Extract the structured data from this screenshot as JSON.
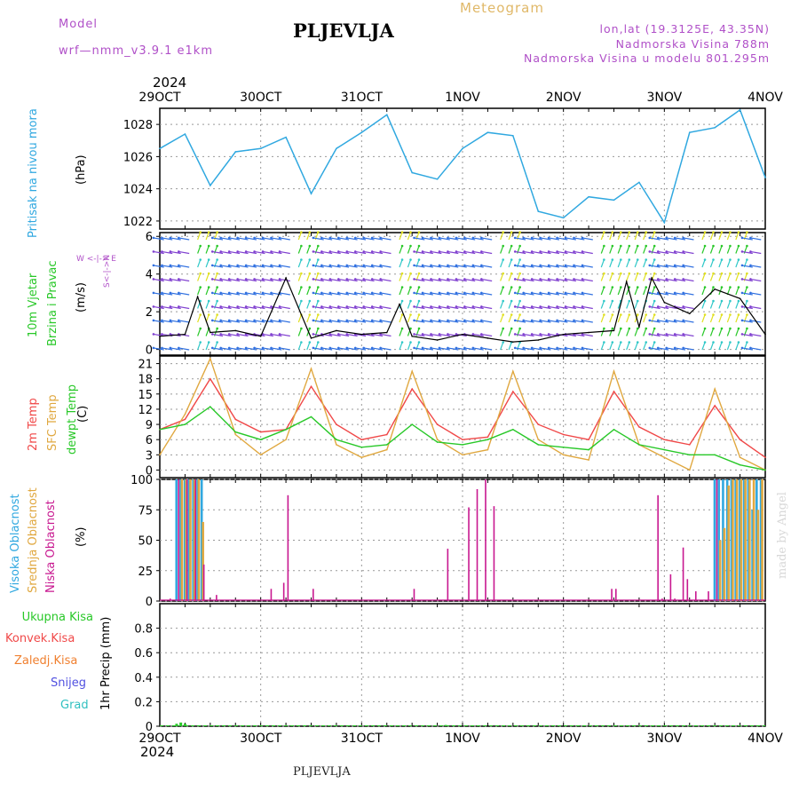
{
  "header": {
    "model_label": "Model",
    "model_name": "wrf—nmm_v3.9.1  e1km",
    "title": "PLJEVLJA",
    "meteogram_label": "Meteogram",
    "lonlat": "lon,lat (19.3125E, 43.35N)",
    "elevation": "Nadmorska Visina 788m",
    "model_elevation": "Nadmorska Visina u modelu 801.295m",
    "year_top": "2024",
    "year_bottom": "2024",
    "station_bottom": "PLJEVLJA",
    "credit": "made by Angel"
  },
  "colors": {
    "pressure": "#30a8e0",
    "temp2m": "#f04848",
    "sfc_temp": "#e0a840",
    "dewpoint": "#28c828",
    "high_cloud": "#30a8e0",
    "mid_cloud": "#e0a840",
    "low_cloud": "#c81890",
    "total_precip": "#28c828",
    "conv_precip": "#f04848",
    "frz_precip": "#f08030",
    "snow": "#5050e0",
    "graupel": "#30c0c0",
    "wind_purple": "#8040d0"
  },
  "panel_labels": {
    "pressure": {
      "name": "Pritisak na nivou mora",
      "unit": "(hPa)"
    },
    "wind": {
      "name1": "10m Vjetar",
      "name2": "Brzina i Pravac",
      "unit": "(m/s)",
      "compass": "W <-|-> E",
      "compass_ns": "S<-|->N"
    },
    "temp": {
      "t2m": "2m Temp",
      "sfc": "SFC Temp",
      "dew": "dewpt Temp",
      "unit": "(C)"
    },
    "cloud": {
      "high": "Visoka Oblacnost",
      "mid": "Srednja Oblacnost",
      "low": "Niska Oblacnost",
      "unit": "(%)"
    },
    "precip": {
      "total": "Ukupna Kisa",
      "conv": "Konvek.Kisa",
      "frz": "Zaledj.Kisa",
      "snow": "Snijeg",
      "graupel": "Grad",
      "unit": "1hr Precip (mm)"
    }
  },
  "chart_data": [
    {
      "type": "line",
      "name": "pressure",
      "x_categories": [
        "29OCT",
        "30OCT",
        "31OCT",
        "1NOV",
        "2NOV",
        "3NOV",
        "4NOV"
      ],
      "x_unit": "hours since 29OCT 00",
      "ylim": [
        1021.5,
        1029
      ],
      "yticks": [
        1022,
        1024,
        1026,
        1028
      ],
      "grid": true,
      "series": [
        {
          "x": [
            0,
            6,
            12,
            18,
            21,
            24,
            30,
            36,
            42,
            48,
            54,
            60,
            66,
            72,
            78,
            84,
            90,
            96,
            102,
            108,
            114,
            120,
            126,
            132,
            138,
            144
          ],
          "values": [
            1026.5,
            1027.4,
            1024.2,
            1026.3,
            1026.4,
            1026.5,
            1027.2,
            1023.7,
            1026.5,
            1027.5,
            1028.6,
            1025.0,
            1024.6,
            1026.5,
            1027.5,
            1027.3,
            1022.6,
            1022.2,
            1023.5,
            1023.3,
            1024.4,
            1021.9,
            1027.5,
            1027.8,
            1028.9,
            1024.7
          ]
        }
      ]
    },
    {
      "type": "line",
      "name": "wind",
      "ylim": [
        -0.3,
        6.2
      ],
      "yticks": [
        0,
        2,
        4,
        6
      ],
      "grid": true,
      "series": [
        {
          "name": "10m wind speed",
          "x": [
            0,
            6,
            9,
            12,
            18,
            24,
            30,
            36,
            42,
            48,
            54,
            57,
            60,
            66,
            72,
            78,
            84,
            90,
            96,
            102,
            108,
            111,
            114,
            117,
            120,
            126,
            132,
            138,
            144
          ],
          "values": [
            0.7,
            0.8,
            2.8,
            0.9,
            1.0,
            0.7,
            3.8,
            0.6,
            1.0,
            0.8,
            0.9,
            2.4,
            0.7,
            0.5,
            0.8,
            0.6,
            0.4,
            0.5,
            0.8,
            0.9,
            1.0,
            3.6,
            1.2,
            3.8,
            2.5,
            1.9,
            3.2,
            2.7,
            0.8
          ]
        }
      ]
    },
    {
      "type": "line",
      "name": "temperature",
      "ylim": [
        -1.5,
        22.5
      ],
      "yticks": [
        0,
        3,
        6,
        9,
        12,
        15,
        18,
        21
      ],
      "grid": true,
      "series": [
        {
          "name": "2m Temp",
          "x": [
            0,
            6,
            12,
            18,
            24,
            30,
            36,
            42,
            48,
            54,
            60,
            66,
            72,
            78,
            84,
            90,
            96,
            102,
            108,
            114,
            120,
            126,
            132,
            138,
            144
          ],
          "values": [
            8,
            10,
            18,
            10,
            7.5,
            8,
            16.5,
            9,
            6,
            7,
            16,
            9,
            6,
            6.5,
            15.5,
            9,
            7,
            6,
            15.5,
            8.5,
            6,
            5,
            12.7,
            6,
            2.5
          ]
        },
        {
          "name": "SFC Temp",
          "x": [
            0,
            6,
            12,
            18,
            24,
            30,
            36,
            42,
            48,
            54,
            60,
            66,
            72,
            78,
            84,
            90,
            96,
            102,
            108,
            114,
            120,
            126,
            132,
            138,
            144
          ],
          "values": [
            3,
            11,
            22,
            7,
            3,
            6,
            20,
            5,
            2.5,
            4,
            19.5,
            6,
            3,
            4,
            19.5,
            6,
            3,
            2,
            19.5,
            5,
            2.5,
            0,
            16,
            2.5,
            0
          ]
        },
        {
          "name": "dewpt Temp",
          "x": [
            0,
            6,
            12,
            18,
            24,
            30,
            36,
            42,
            48,
            54,
            60,
            66,
            72,
            78,
            84,
            90,
            96,
            102,
            108,
            114,
            120,
            126,
            132,
            138,
            144
          ],
          "values": [
            8,
            9,
            12.5,
            7.5,
            6,
            8,
            10.5,
            6,
            4.5,
            5,
            9,
            5.5,
            5,
            6,
            8,
            5,
            4.5,
            4,
            8,
            5,
            4,
            3,
            3,
            1,
            0
          ]
        }
      ]
    },
    {
      "type": "bar",
      "name": "cloud cover",
      "ylim": [
        0,
        100
      ],
      "yticks": [
        0,
        25,
        50,
        75,
        100
      ],
      "grid": true,
      "series": [
        {
          "name": "Visoka Oblacnost",
          "x": [
            4,
            5,
            6,
            7,
            8,
            9,
            10,
            132,
            133,
            134,
            135,
            136,
            137,
            138,
            139,
            140,
            141,
            142,
            143
          ],
          "values": [
            100,
            100,
            100,
            100,
            100,
            100,
            100,
            100,
            100,
            100,
            100,
            100,
            100,
            100,
            100,
            100,
            75,
            100,
            100
          ]
        },
        {
          "name": "Srednja Oblacnost",
          "x": [
            5,
            6,
            7,
            8,
            9,
            10,
            133,
            134,
            135,
            136,
            137,
            138,
            139,
            140,
            141,
            142,
            143
          ],
          "values": [
            100,
            100,
            100,
            100,
            100,
            65,
            50,
            60,
            95,
            100,
            100,
            100,
            100,
            100,
            100,
            75,
            100
          ]
        },
        {
          "name": "Niska Oblacnost",
          "x": [
            2,
            4,
            6,
            8,
            10,
            13,
            26,
            29,
            30,
            36,
            60,
            68,
            73,
            75,
            77,
            79,
            107,
            108,
            118,
            119,
            121,
            122,
            124,
            125,
            127,
            130,
            132
          ],
          "values": [
            2,
            100,
            100,
            100,
            30,
            5,
            10,
            15,
            87,
            10,
            10,
            43,
            77,
            92,
            100,
            78,
            10,
            10,
            87,
            2,
            22,
            2,
            44,
            18,
            8,
            8,
            100
          ]
        }
      ]
    },
    {
      "type": "bar",
      "name": "precipitation",
      "ylim": [
        0,
        1.0
      ],
      "yticks": [
        0,
        0.2,
        0.4,
        0.6,
        0.8
      ],
      "grid": true,
      "series": [
        {
          "name": "Ukupna Kisa",
          "x": [
            4,
            5,
            6,
            68
          ],
          "values": [
            0.02,
            0.03,
            0.02,
            0.01
          ]
        }
      ]
    }
  ]
}
